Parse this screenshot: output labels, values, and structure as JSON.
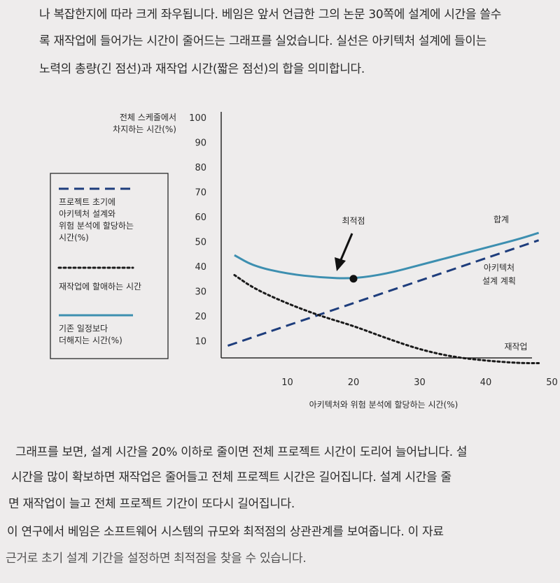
{
  "text": {
    "para1": [
      "나 복잡한지에 따라 크게 좌우됩니다. 베임은 앞서 언급한 그의 논문 30쪽에 설계에 시간을 쓸수",
      "록 재작업에 들어가는 시간이 줄어드는 그래프를 실었습니다. 실선은 아키텍처 설계에 들이는",
      "노력의 총량(긴 점선)과 재작업 시간(짧은 점선)의 합을 의미합니다."
    ],
    "para2": [
      "그래프를 보면, 설계 시간을 20% 이하로 줄이면 전체 프로젝트 시간이 도리어 늘어납니다. 설",
      "시간을 많이 확보하면 재작업은 줄어들고 전체 프로젝트 시간은 길어집니다. 설계 시간을 줄",
      "면 재작업이 늘고 전체 프로젝트 기간이 또다시 길어집니다."
    ],
    "para3": [
      "이 연구에서 베임은 소프트웨어 시스템의 규모와 최적점의 상관관계를 보여줍니다. 이 자료",
      "근거로 초기 설계 기간을 설정하면 최적점을 찾을 수 있습니다."
    ]
  },
  "chart_data": {
    "type": "line",
    "ylabel": [
      "전체 스케줄에서",
      "차지하는 시간(%)"
    ],
    "xlabel": "아키텍처와 위험 분석에 할당하는 시간(%)",
    "xlim": [
      0,
      50
    ],
    "ylim": [
      0,
      100
    ],
    "x_ticks": [
      10,
      20,
      30,
      40,
      50
    ],
    "y_ticks": [
      10,
      20,
      30,
      40,
      50,
      60,
      70,
      80,
      90,
      100
    ],
    "series": [
      {
        "name": "합계",
        "style": "solid",
        "color": "#3d8fb0",
        "x": [
          2,
          5,
          10,
          15,
          20,
          25,
          30,
          35,
          40,
          45,
          48
        ],
        "y": [
          44.5,
          40,
          37,
          35.5,
          35,
          37,
          40.5,
          44,
          47.5,
          51,
          53.5
        ]
      },
      {
        "name": "아키텍처 설계 계획",
        "style": "long-dash",
        "color": "#1e3d7c",
        "x": [
          1,
          48
        ],
        "y": [
          8,
          50.5
        ]
      },
      {
        "name": "재작업",
        "style": "short-dot",
        "color": "#1a1a1a",
        "x": [
          2,
          5,
          10,
          15,
          20,
          25,
          30,
          35,
          40,
          45,
          48
        ],
        "y": [
          36.5,
          31,
          25,
          20,
          16,
          11,
          6.5,
          3.5,
          2,
          1,
          1
        ]
      }
    ],
    "annotation": {
      "label": "최적점",
      "x": 20,
      "y": 35
    },
    "legend": {
      "position": "left",
      "items": [
        {
          "style": "long-dash",
          "color": "#1e3d7c",
          "lines": [
            "프로젝트 초기에",
            "아키텍처 설계와",
            "위험 분석에 할당하는",
            "시간(%)"
          ]
        },
        {
          "style": "short-dot",
          "color": "#1a1a1a",
          "lines": [
            "재작업에 할애하는 시간"
          ]
        },
        {
          "style": "solid",
          "color": "#3d8fb0",
          "lines": [
            "기존 일정보다",
            "더해지는 시간(%)"
          ]
        }
      ]
    }
  }
}
